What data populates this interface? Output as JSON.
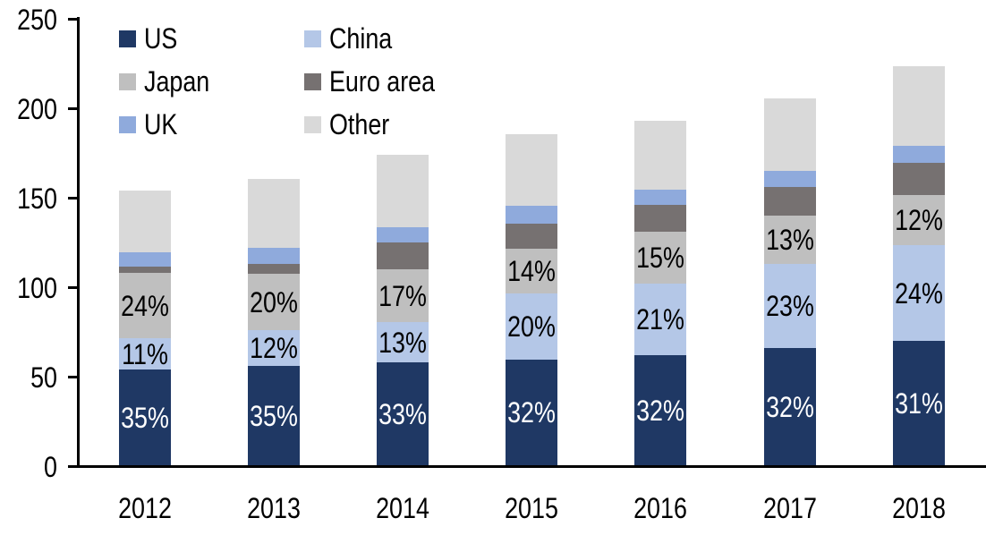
{
  "chart_data": {
    "type": "bar",
    "variant": "stacked-column",
    "background_color": "#FFFFFF",
    "axis_color": "#000000",
    "title": "",
    "xlabel": "",
    "ylabel": "",
    "categories": [
      "2012",
      "2013",
      "2014",
      "2015",
      "2016",
      "2017",
      "2018"
    ],
    "series": [
      {
        "name": "US",
        "color": "#1F3864",
        "values": [
          53.5,
          55.5,
          57.5,
          59,
          61.5,
          65.5,
          69.5
        ],
        "data_labels": [
          "35%",
          "35%",
          "33%",
          "32%",
          "32%",
          "32%",
          "31%"
        ],
        "data_label_color": "#FFFFFF"
      },
      {
        "name": "China",
        "color": "#B4C7E7",
        "values": [
          17.5,
          20,
          22.5,
          37,
          40,
          47,
          53.5
        ],
        "data_labels": [
          "11%",
          "12%",
          "13%",
          "20%",
          "21%",
          "23%",
          "24%"
        ],
        "data_label_color": "#000000"
      },
      {
        "name": "Japan",
        "color": "#BFBFBF",
        "values": [
          36.5,
          31.5,
          29.5,
          25,
          29,
          27,
          28
        ],
        "data_labels": [
          "24%",
          "20%",
          "17%",
          "14%",
          "15%",
          "13%",
          "12%"
        ],
        "data_label_color": "#000000"
      },
      {
        "name": "Euro area",
        "color": "#767171",
        "values": [
          3.5,
          5.5,
          15,
          14,
          15,
          16,
          18
        ],
        "data_labels": null,
        "data_label_color": null
      },
      {
        "name": "UK",
        "color": "#8FAADC",
        "values": [
          8,
          9,
          8.5,
          10,
          8.5,
          9,
          9.5
        ],
        "data_labels": null,
        "data_label_color": null
      },
      {
        "name": "Other",
        "color": "#D9D9D9",
        "values": [
          34.5,
          38.5,
          40.5,
          40,
          38.5,
          40.5,
          44.5
        ],
        "data_labels": null,
        "data_label_color": null
      }
    ],
    "stack_totals_approx": [
      153.5,
      160,
      173.5,
      185,
      192.5,
      205,
      223
    ],
    "y_axis": {
      "min": 0,
      "max": 250,
      "tick_interval": 50,
      "tick_labels": [
        "0",
        "50",
        "100",
        "150",
        "200",
        "250"
      ],
      "gridlines": false
    },
    "x_axis": {
      "tick_labels": [
        "2012",
        "2013",
        "2014",
        "2015",
        "2016",
        "2017",
        "2018"
      ]
    },
    "legend": {
      "position": "top-left",
      "columns": 2,
      "items_row_major": [
        {
          "label": "US",
          "color": "#1F3864"
        },
        {
          "label": "China",
          "color": "#B4C7E7"
        },
        {
          "label": "Japan",
          "color": "#BFBFBF"
        },
        {
          "label": "Euro area",
          "color": "#767171"
        },
        {
          "label": "UK",
          "color": "#8FAADC"
        },
        {
          "label": "Other",
          "color": "#D9D9D9"
        }
      ]
    }
  }
}
